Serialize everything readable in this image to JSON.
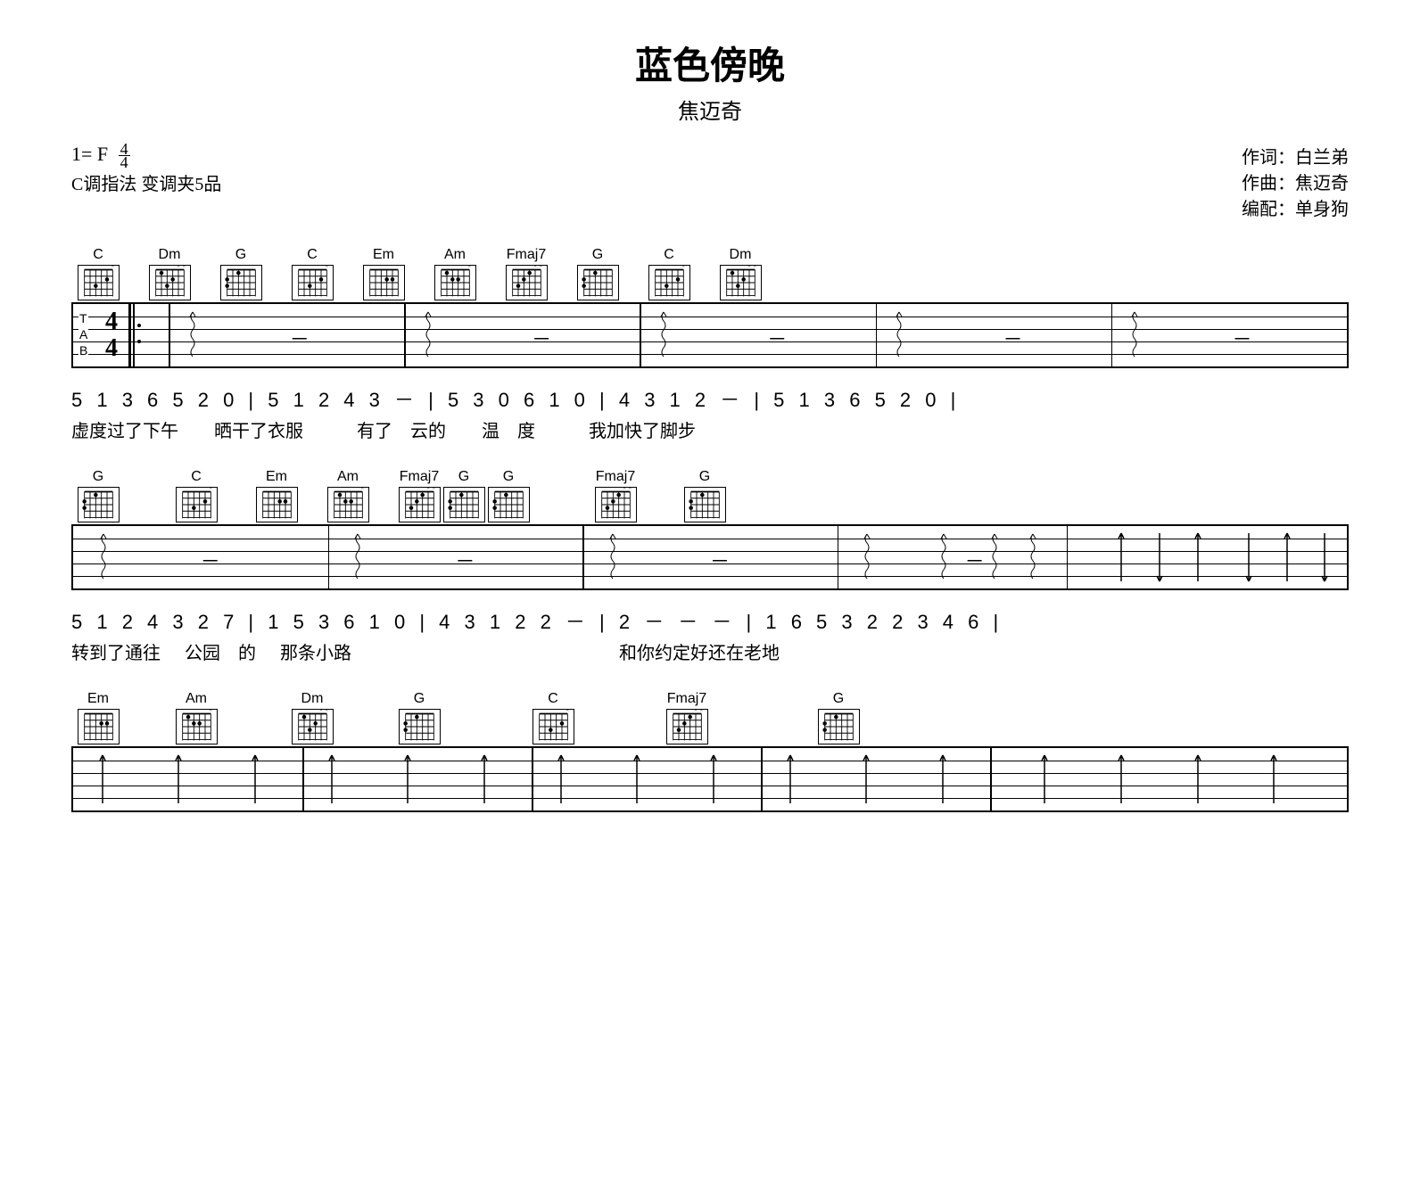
{
  "title": "蓝色傍晚",
  "artist": "焦迈奇",
  "credits": {
    "lyricist_label": "作词：",
    "lyricist": "白兰弟",
    "composer_label": "作曲：",
    "composer": "焦迈奇",
    "arranger_label": "编配：",
    "arranger": "单身狗"
  },
  "key_line": "1= F",
  "time_sig": {
    "num": "4",
    "den": "4"
  },
  "capo_line": "C调指法 变调夹5品",
  "systems": [
    {
      "chords": [
        "C",
        "Dm",
        "G",
        "C",
        "Em",
        "Am",
        "Fmaj7",
        "G",
        "C",
        "Dm"
      ],
      "chord_gaps": [
        0,
        80,
        80,
        80,
        80,
        80,
        80,
        80,
        80,
        80
      ],
      "tab": {
        "show_ts": true,
        "show_repeat": true,
        "barlines_pct": [
          7.5,
          26,
          44.5,
          63,
          81.5,
          100
        ],
        "strums": [
          {
            "pos_pct": 9,
            "type": "wavy"
          },
          {
            "pos_pct": 27.5,
            "type": "wavy"
          },
          {
            "pos_pct": 46,
            "type": "wavy"
          },
          {
            "pos_pct": 64.5,
            "type": "wavy"
          },
          {
            "pos_pct": 83,
            "type": "wavy"
          }
        ],
        "rests": [
          17,
          36,
          54.5,
          73,
          91
        ]
      },
      "jianpu": "5 1 3 6 5 2 0 | 5 1 2 4 3 － | 5 3 0 6 1 0 | 4 3 1 2 － | 5 1 3 6 5 2 0 |",
      "lyrics": "虚度过了下午　　晒干了衣服　　　有了　云的　　温　度　　　我加快了脚步"
    },
    {
      "chords": [
        "G",
        "C",
        "Em",
        "Am",
        "Fmaj7",
        "G",
        "G",
        "Fmaj7",
        "G"
      ],
      "chord_gaps": [
        0,
        110,
        90,
        80,
        80,
        50,
        50,
        120,
        100
      ],
      "tab": {
        "show_ts": false,
        "show_repeat": false,
        "barlines_pct": [
          0,
          20,
          40,
          60,
          78,
          100
        ],
        "strums": [
          {
            "pos_pct": 2,
            "type": "wavy"
          },
          {
            "pos_pct": 22,
            "type": "wavy"
          },
          {
            "pos_pct": 42,
            "type": "wavy"
          },
          {
            "pos_pct": 62,
            "type": "wavy"
          },
          {
            "pos_pct": 68,
            "type": "wavy"
          },
          {
            "pos_pct": 72,
            "type": "wavy"
          },
          {
            "pos_pct": 75,
            "type": "wavy"
          },
          {
            "pos_pct": 82,
            "type": "up"
          },
          {
            "pos_pct": 85,
            "type": "down"
          },
          {
            "pos_pct": 88,
            "type": "up"
          },
          {
            "pos_pct": 92,
            "type": "down"
          },
          {
            "pos_pct": 95,
            "type": "up"
          },
          {
            "pos_pct": 98,
            "type": "down"
          }
        ],
        "rests": [
          10,
          30,
          50,
          70
        ]
      },
      "jianpu": "5 1 2 4 3 2 7 | 1 5 3 6 1 0 | 4 3 1 2 2 － | 2 － － － | 1 6 5 3 2 2 3 4 6 |",
      "lyrics": "转到了通往 公园　的 那条小路　　　　　　　　　　　　　　　和你约定好还在老地"
    },
    {
      "chords": [
        "Em",
        "Am",
        "Dm",
        "G",
        "C",
        "Fmaj7",
        "G"
      ],
      "chord_gaps": [
        0,
        110,
        130,
        120,
        150,
        150,
        170
      ],
      "tab": {
        "show_ts": false,
        "show_repeat": false,
        "barlines_pct": [
          0,
          18,
          36,
          54,
          72,
          100
        ],
        "strums": [
          {
            "pos_pct": 2,
            "type": "up"
          },
          {
            "pos_pct": 8,
            "type": "up"
          },
          {
            "pos_pct": 14,
            "type": "up"
          },
          {
            "pos_pct": 20,
            "type": "up"
          },
          {
            "pos_pct": 26,
            "type": "up"
          },
          {
            "pos_pct": 32,
            "type": "up"
          },
          {
            "pos_pct": 38,
            "type": "up"
          },
          {
            "pos_pct": 44,
            "type": "up"
          },
          {
            "pos_pct": 50,
            "type": "up"
          },
          {
            "pos_pct": 56,
            "type": "up"
          },
          {
            "pos_pct": 62,
            "type": "up"
          },
          {
            "pos_pct": 68,
            "type": "up"
          },
          {
            "pos_pct": 76,
            "type": "up"
          },
          {
            "pos_pct": 82,
            "type": "up"
          },
          {
            "pos_pct": 88,
            "type": "up"
          },
          {
            "pos_pct": 94,
            "type": "up"
          }
        ],
        "rests": []
      },
      "jianpu": "",
      "lyrics": ""
    }
  ],
  "colors": {
    "background": "#ffffff",
    "text": "#000000",
    "line": "#000000"
  }
}
